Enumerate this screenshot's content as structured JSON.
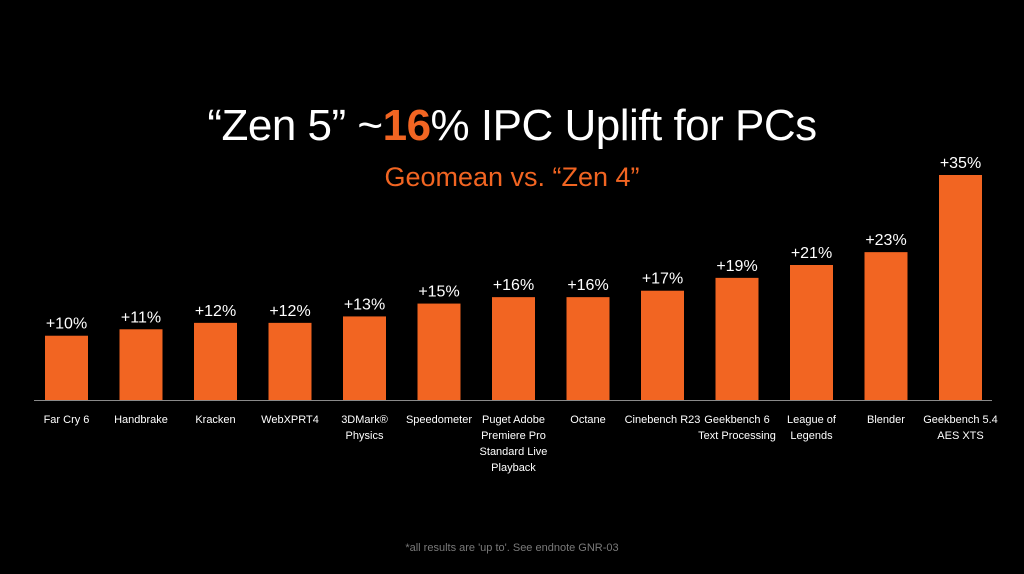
{
  "header": {
    "title_pre": "“Zen 5” ~",
    "title_accent": "16",
    "title_post": "% IPC Uplift for PCs",
    "subtitle": "Geomean  vs. “Zen 4”"
  },
  "footnote": "*all results are 'up to'. See endnote GNR-03",
  "colors": {
    "background": "#000000",
    "bar": "#f26522",
    "accent": "#f26522",
    "text": "#ffffff",
    "axis": "#8a8a8a"
  },
  "chart_data": {
    "type": "bar",
    "title": "“Zen 5” ~16% IPC Uplift for PCs",
    "subtitle": "Geomean  vs. “Zen 4”",
    "xlabel": "",
    "ylabel": "",
    "ylim": [
      0,
      35
    ],
    "grid": false,
    "categories": [
      [
        "Far Cry 6"
      ],
      [
        "Handbrake"
      ],
      [
        "Kracken"
      ],
      [
        "WebXPRT4"
      ],
      [
        "3DMark®",
        "Physics"
      ],
      [
        "Speedometer"
      ],
      [
        "Puget Adobe",
        "Premiere Pro",
        "Standard Live",
        "Playback"
      ],
      [
        "Octane"
      ],
      [
        "Cinebench R23"
      ],
      [
        "Geekbench 6",
        "Text Processing"
      ],
      [
        "League of",
        "Legends"
      ],
      [
        "Blender"
      ],
      [
        "Geekbench 5.4",
        "AES XTS"
      ]
    ],
    "values": [
      10,
      11,
      12,
      12,
      13,
      15,
      16,
      16,
      17,
      19,
      21,
      23,
      35
    ],
    "value_labels": [
      "+10%",
      "+11%",
      "+12%",
      "+12%",
      "+13%",
      "+15%",
      "+16%",
      "+16%",
      "+17%",
      "+19%",
      "+21%",
      "+23%",
      "+35%"
    ]
  }
}
